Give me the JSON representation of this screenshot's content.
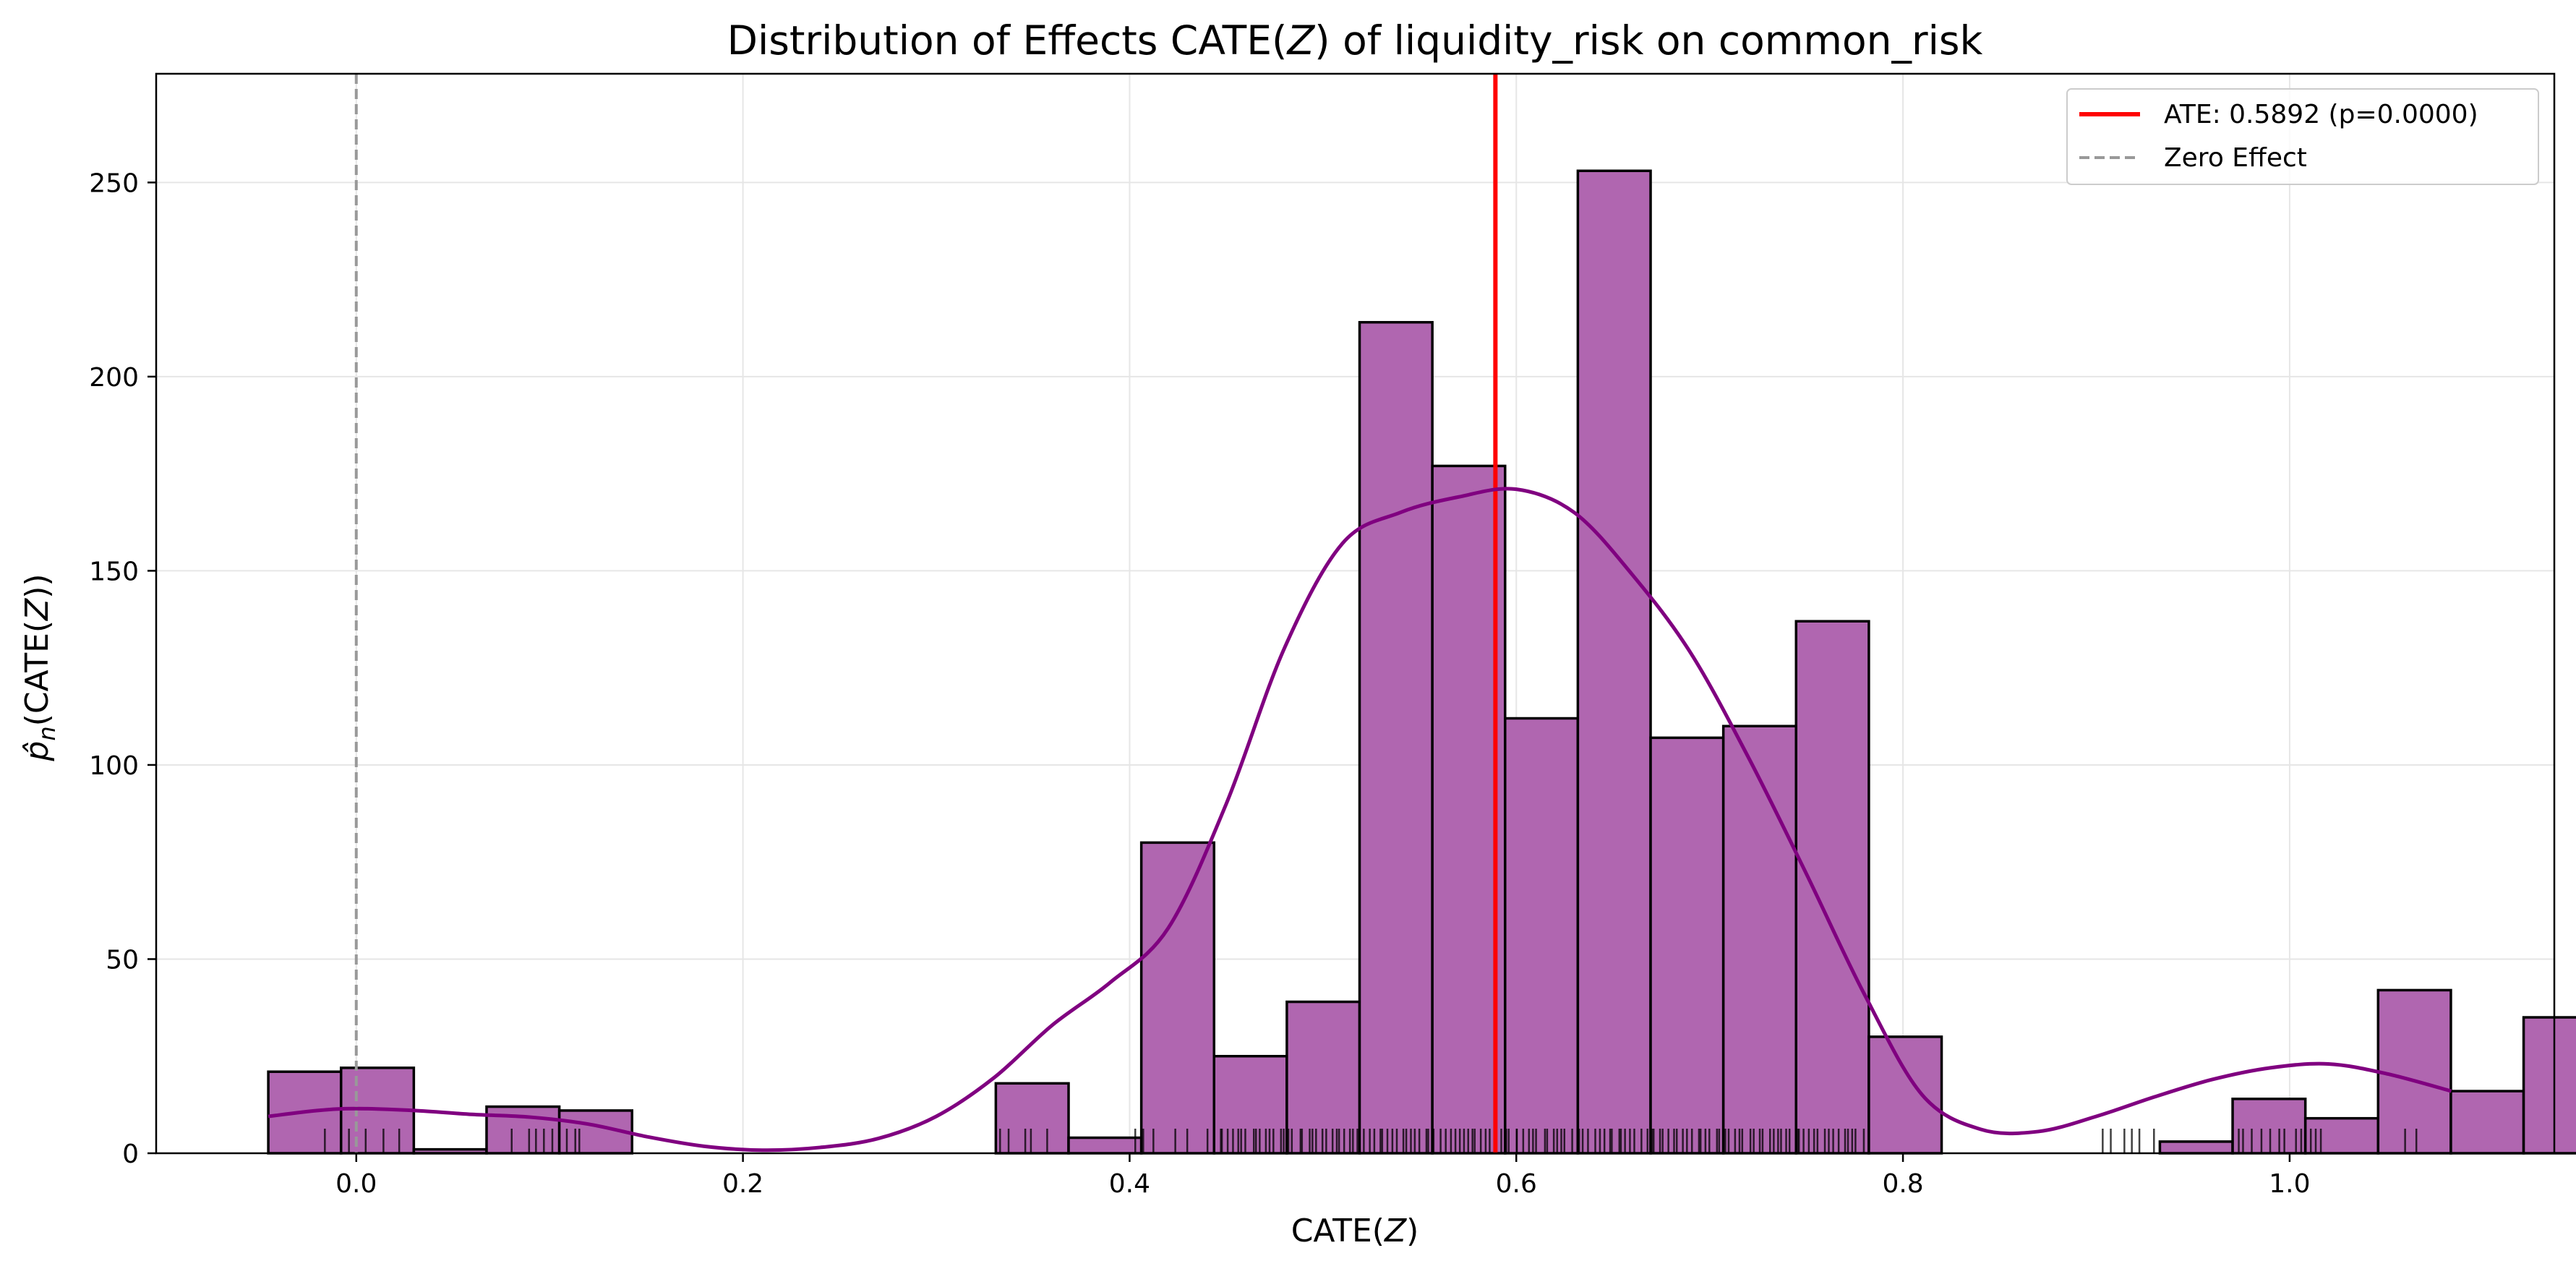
{
  "chart_data": {
    "type": "bar",
    "title": "Distribution of Effects CATE(Z) of liquidity_risk on common_risk",
    "title_parts": {
      "before": "Distribution of Effects CATE(",
      "var": "Z",
      "after": ") of liquidity_risk on common_risk"
    },
    "xlabel": "CATE(Z)",
    "xlabel_parts": {
      "before": "CATE(",
      "var": "Z",
      "after": ")"
    },
    "ylabel": "p̂n(CATE(Z))",
    "ylabel_parts": {
      "hat_var": "p̂",
      "sub": "n",
      "before": "(CATE(",
      "var": "Z",
      "after": "))"
    },
    "xlim": [
      -0.1035,
      1.1369
    ],
    "ylim": [
      0,
      278
    ],
    "xticks": [
      0.0,
      0.2,
      0.4,
      0.6,
      0.8,
      1.0
    ],
    "xtick_labels": [
      "0.0",
      "0.2",
      "0.4",
      "0.6",
      "0.8",
      "1.0"
    ],
    "yticks": [
      0,
      50,
      100,
      150,
      200,
      250
    ],
    "ytick_labels": [
      "0",
      "50",
      "100",
      "150",
      "200",
      "250"
    ],
    "grid": true,
    "bar_color": "#b066b0",
    "bar_edge_color": "#000000",
    "histogram": {
      "bin_start": -0.0455,
      "bin_width": 0.03763,
      "counts": [
        21,
        22,
        1,
        12,
        11,
        0,
        0,
        0,
        0,
        0,
        18,
        4,
        80,
        25,
        39,
        214,
        177,
        112,
        253,
        107,
        110,
        137,
        30,
        0,
        0,
        0,
        3,
        14,
        9,
        42,
        16,
        35
      ]
    },
    "kde": {
      "color": "#800080",
      "x": [
        -0.0455,
        -0.02,
        0.0,
        0.03,
        0.06,
        0.09,
        0.12,
        0.15,
        0.18,
        0.21,
        0.24,
        0.27,
        0.3,
        0.33,
        0.36,
        0.39,
        0.42,
        0.45,
        0.48,
        0.51,
        0.54,
        0.57,
        0.6,
        0.63,
        0.66,
        0.69,
        0.72,
        0.75,
        0.78,
        0.81,
        0.84,
        0.87,
        0.9,
        0.93,
        0.96,
        0.99,
        1.02,
        1.05,
        1.0836
      ],
      "y": [
        9.5,
        11,
        11.5,
        11,
        10,
        9.3,
        7.5,
        4.3,
        1.8,
        0.8,
        1.5,
        3.8,
        9.5,
        19.5,
        33,
        44,
        58,
        90,
        130,
        157,
        165,
        169,
        171,
        165,
        149,
        129,
        102,
        72,
        41,
        15,
        6.2,
        5.6,
        9.5,
        14.5,
        19,
        22,
        23,
        20.5,
        16
      ]
    },
    "ate": {
      "value": 0.5892,
      "color": "#ff0000",
      "label": "ATE: 0.5892 (p=0.0000)"
    },
    "zero_effect": {
      "value": 0.0,
      "color": "#999999",
      "label": "Zero Effect"
    },
    "legend_position": "upper right",
    "rug": {
      "color": "#000000",
      "ranges": [
        [
          -0.02,
          0.026,
          6
        ],
        [
          0.08,
          0.12,
          8
        ],
        [
          0.33,
          0.36,
          5
        ],
        [
          0.4,
          0.43,
          5
        ],
        [
          0.44,
          0.78,
          140
        ],
        [
          0.9,
          0.93,
          6
        ],
        [
          0.97,
          1.02,
          12
        ],
        [
          1.05,
          1.07,
          2
        ]
      ]
    }
  }
}
